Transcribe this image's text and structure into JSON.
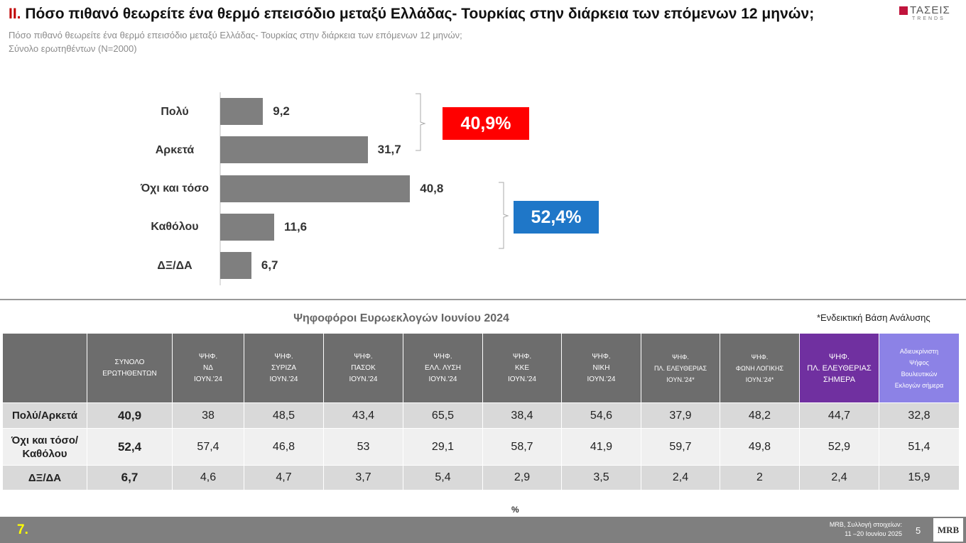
{
  "header": {
    "number": "II.",
    "title": "Πόσο πιθανό θεωρείτε ένα θερμό επεισόδιο μεταξύ Ελλάδας- Τουρκίας στην διάρκεια των επόμενων 12 μηνών;",
    "subtitle": [
      "Πόσο πιθανό θεωρείτε ένα θερμό επεισόδιο μεταξύ Ελλάδας- Τουρκίας στην διάρκεια των επόμενων 12 μηνών;",
      "Σύνολο ερωτηθέντων (Ν=2000)"
    ],
    "logo": [
      "ΤΑΣΕΙΣ",
      "TRENDS"
    ]
  },
  "chart_data": {
    "type": "bar",
    "orientation": "horizontal",
    "color": "#7f7f7f",
    "categories": [
      "Πολύ",
      "Αρκετά",
      "Όχι και τόσο",
      "Καθόλου",
      "ΔΞ/ΔΑ"
    ],
    "values": [
      9.2,
      31.7,
      40.8,
      11.6,
      6.7
    ],
    "value_labels": [
      "9,2",
      "31,7",
      "40,8",
      "11,6",
      "6,7"
    ],
    "annotations": [
      {
        "text": "40,9%",
        "color": "#ff0000"
      },
      {
        "text": "52,4%",
        "color": "#1f77c8"
      }
    ]
  },
  "table": {
    "caption": "Ψηφοφόροι Ευρωεκλογών Ιουνίου 2024",
    "note": "*Ενδεικτική Βάση Ανάλυσης",
    "columns": [
      [
        "ΣΥΝΟΛΟ",
        "ΕΡΩΤΗΘΕΝΤΩΝ"
      ],
      [
        "ΨΗΦ.",
        "ΝΔ",
        "ΙΟΥΝ.'24"
      ],
      [
        "ΨΗΦ.",
        "ΣΥΡΙΖΑ",
        "ΙΟΥΝ.'24"
      ],
      [
        "ΨΗΦ.",
        "ΠΑΣΟΚ",
        "ΙΟΥΝ.'24"
      ],
      [
        "ΨΗΦ.",
        "ΕΛΛ. ΛΥΣΗ",
        "ΙΟΥΝ.'24"
      ],
      [
        "ΨΗΦ.",
        "ΚΚΕ",
        "ΙΟΥΝ.'24"
      ],
      [
        "ΨΗΦ.",
        "ΝΙΚΗ",
        "ΙΟΥΝ.'24"
      ],
      [
        "ΨΗΦ.",
        "ΠΛ. ΕΛΕΥΘΕΡΙΑΣ",
        "ΙΟΥΝ.'24*"
      ],
      [
        "ΨΗΦ.",
        "ΦΩΝΗ ΛΟΓΙΚΗΣ",
        "ΙΟΥΝ.'24*"
      ],
      [
        "ΨΗΦ.",
        "ΠΛ. ΕΛΕΥΘΕΡΙΑΣ",
        "ΣΗΜΕΡΑ"
      ],
      [
        "Αδιευκρίνιστη",
        "Ψήφος",
        "Βουλευτικών",
        "Εκλογών σήμερα"
      ]
    ],
    "rows": [
      {
        "label": "Πολύ/Αρκετά",
        "cells": [
          "40,9",
          "38",
          "48,5",
          "43,4",
          "65,5",
          "38,4",
          "54,6",
          "37,9",
          "48,2",
          "44,7",
          "32,8"
        ]
      },
      {
        "label": "Όχι και τόσο/Καθόλου",
        "cells": [
          "52,4",
          "57,4",
          "46,8",
          "53",
          "29,1",
          "58,7",
          "41,9",
          "59,7",
          "49,8",
          "52,9",
          "51,4"
        ]
      },
      {
        "label": "ΔΞ/ΔΑ",
        "cells": [
          "6,7",
          "4,6",
          "4,7",
          "3,7",
          "5,4",
          "2,9",
          "3,5",
          "2,4",
          "2",
          "2,4",
          "15,9"
        ]
      }
    ],
    "unit": "%"
  },
  "footer": {
    "page_label": "7.",
    "source": [
      "MRB, Συλλογή στοιχείων:",
      "11 –20 Ιουνίου 2025"
    ],
    "page_number": "5",
    "brand": "MRB"
  }
}
